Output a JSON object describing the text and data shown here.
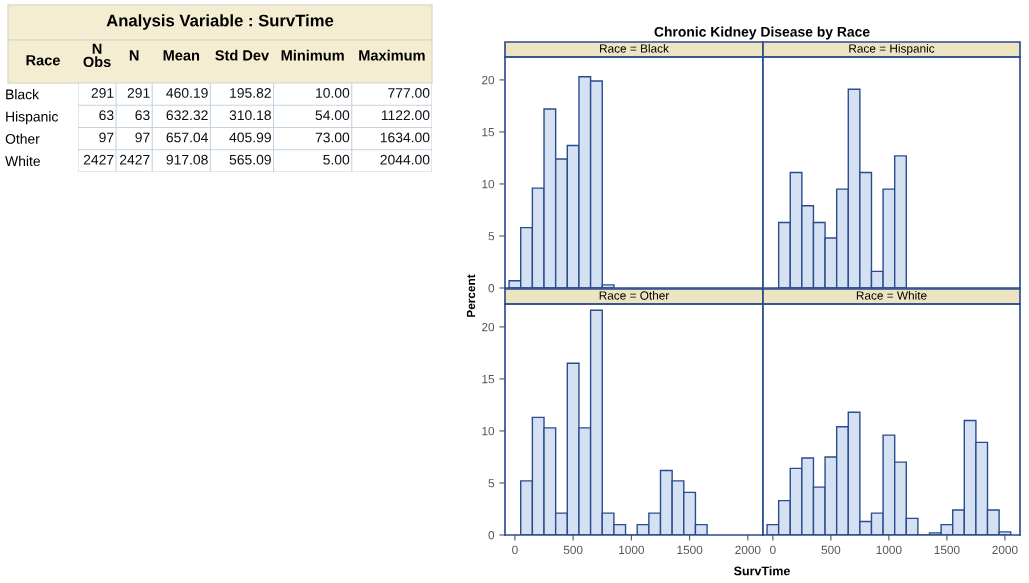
{
  "chart_data": [
    {
      "type": "other",
      "title": "Analysis Variable : SurvTime",
      "ylabel": "Race",
      "categories": [
        "N\nObs",
        "N",
        "Mean",
        "Std Dev",
        "Minimum",
        "Maximum"
      ],
      "y_categories": [
        "Black",
        "Hispanic",
        "Other",
        "White"
      ],
      "cell_labels": [
        [
          "291",
          "291",
          "460.19",
          "195.82",
          "10.00",
          "777.00"
        ],
        [
          "63",
          "63",
          "632.32",
          "310.18",
          "54.00",
          "1122.00"
        ],
        [
          "97",
          "97",
          "657.04",
          "405.99",
          "73.00",
          "1634.00"
        ],
        [
          "2427",
          "2427",
          "917.08",
          "565.09",
          "5.00",
          "2044.00"
        ]
      ]
    },
    {
      "type": "histogram",
      "title": "Race = Black",
      "annotations": [
        "Chronic Kidney Disease by Race"
      ],
      "ylabel": "Percent",
      "color": "#d3e1f3",
      "bins": [
        -50,
        50,
        150,
        250,
        350,
        450,
        550,
        650,
        750,
        850
      ],
      "values": [
        0.7,
        5.8,
        9.6,
        17.2,
        12.4,
        13.7,
        20.3,
        19.9,
        0.3
      ],
      "xlim": [
        -85,
        2130
      ],
      "xticks": [
        0,
        500,
        1000,
        1500,
        2000
      ],
      "ylim": [
        0,
        22.2
      ],
      "yticks": [
        0,
        5,
        10,
        15,
        20
      ],
      "tick_labels": "y"
    },
    {
      "type": "histogram",
      "title": "Race = Hispanic",
      "color": "#d3e1f3",
      "bins": [
        50,
        150,
        250,
        350,
        450,
        550,
        650,
        750,
        850,
        950,
        1050,
        1150
      ],
      "values": [
        6.3,
        11.1,
        7.9,
        6.3,
        4.8,
        9.5,
        19.1,
        11.1,
        1.6,
        9.5,
        12.7
      ],
      "xlim": [
        -85,
        2130
      ],
      "xticks": [
        0,
        500,
        1000,
        1500,
        2000
      ],
      "ylim": [
        0,
        22.2
      ],
      "yticks": [
        0,
        5,
        10,
        15,
        20
      ],
      "tick_labels": false
    },
    {
      "type": "histogram",
      "title": "Race = Other",
      "xlabel": "SurvTime",
      "color": "#d3e1f3",
      "bins": [
        50,
        150,
        250,
        350,
        450,
        550,
        650,
        750,
        850,
        950,
        1050,
        1150,
        1250,
        1350,
        1450,
        1550,
        1650
      ],
      "values": [
        5.2,
        11.3,
        10.3,
        2.1,
        16.5,
        10.3,
        21.6,
        2.1,
        1.0,
        0,
        1.0,
        2.1,
        6.2,
        5.2,
        4.1,
        1.0
      ],
      "xlim": [
        -85,
        2130
      ],
      "xticks": [
        0,
        500,
        1000,
        1500,
        2000
      ],
      "ylim": [
        0,
        22.2
      ],
      "yticks": [
        0,
        5,
        10,
        15,
        20
      ]
    },
    {
      "type": "histogram",
      "title": "Race = White",
      "color": "#d3e1f3",
      "bins": [
        -50,
        50,
        150,
        250,
        350,
        450,
        550,
        650,
        750,
        850,
        950,
        1050,
        1150,
        1250,
        1350,
        1450,
        1550,
        1650,
        1750,
        1850,
        1950,
        2050
      ],
      "values": [
        1.0,
        3.3,
        6.4,
        7.4,
        4.6,
        7.5,
        10.4,
        11.8,
        1.3,
        2.1,
        9.6,
        7.0,
        1.6,
        0,
        0.2,
        1.0,
        2.4,
        11.0,
        8.9,
        2.4,
        0.3
      ],
      "xlim": [
        -85,
        2130
      ],
      "xticks": [
        0,
        500,
        1000,
        1500,
        2000
      ],
      "ylim": [
        0,
        22.2
      ],
      "yticks": [
        0,
        5,
        10,
        15,
        20
      ],
      "tick_labels": "x"
    }
  ]
}
